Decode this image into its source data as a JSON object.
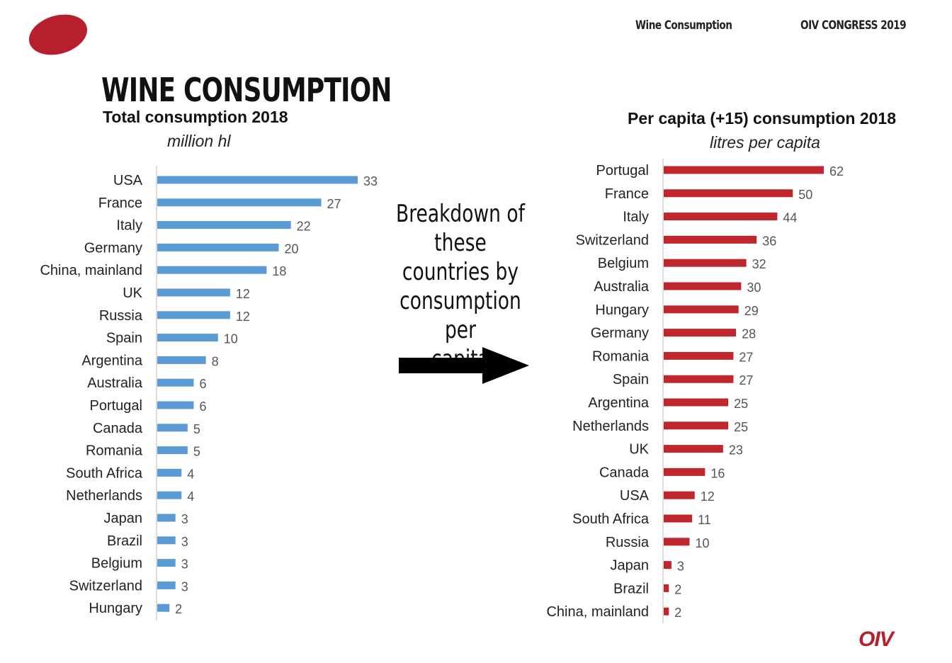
{
  "header": {
    "topic": "Wine Consumption",
    "event": "OIV CONGRESS 2019"
  },
  "title": "WINE CONSUMPTION",
  "annotation": {
    "text_lines": [
      "Breakdown of",
      "these countries by",
      "consumption per",
      "capita"
    ]
  },
  "footer": {
    "logo_text": "OIV"
  },
  "colors": {
    "left_bar": "#5b9bd5",
    "right_bar": "#c0272d",
    "brand": "#b51f2e"
  },
  "chart_data": [
    {
      "type": "bar",
      "orientation": "horizontal",
      "title": "Total consumption 2018",
      "subtitle": "million hl",
      "categories": [
        "USA",
        "France",
        "Italy",
        "Germany",
        "China, mainland",
        "UK",
        "Russia",
        "Spain",
        "Argentina",
        "Australia",
        "Portugal",
        "Canada",
        "Romania",
        "South Africa",
        "Netherlands",
        "Japan",
        "Brazil",
        "Belgium",
        "Switzerland",
        "Hungary"
      ],
      "values": [
        33,
        27,
        22,
        20,
        18,
        12,
        12,
        10,
        8,
        6,
        6,
        5,
        5,
        4,
        4,
        3,
        3,
        3,
        3,
        2
      ],
      "xlim": [
        0,
        33
      ]
    },
    {
      "type": "bar",
      "orientation": "horizontal",
      "title": "Per capita (+15) consumption 2018",
      "subtitle": "litres per capita",
      "categories": [
        "Portugal",
        "France",
        "Italy",
        "Switzerland",
        "Belgium",
        "Australia",
        "Hungary",
        "Germany",
        "Romania",
        "Spain",
        "Argentina",
        "Netherlands",
        "UK",
        "Canada",
        "USA",
        "South Africa",
        "Russia",
        "Japan",
        "Brazil",
        "China, mainland"
      ],
      "values": [
        62,
        50,
        44,
        36,
        32,
        30,
        29,
        28,
        27,
        27,
        25,
        25,
        23,
        16,
        12,
        11,
        10,
        3,
        2,
        2
      ],
      "xlim": [
        0,
        62
      ]
    }
  ]
}
